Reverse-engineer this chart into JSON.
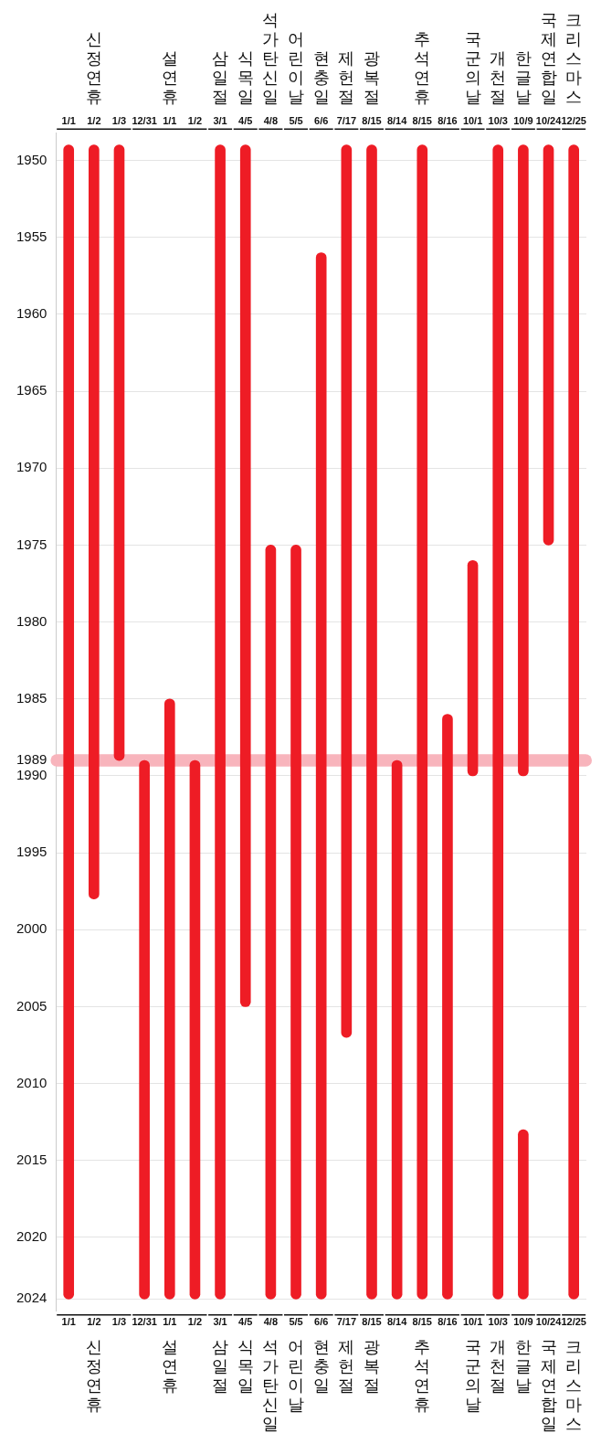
{
  "chart_data": {
    "type": "bar",
    "categories": [
      null,
      "신정연휴",
      null,
      null,
      "설연휴",
      null,
      "삼일절",
      "식목일",
      "석가탄신일",
      "어린이날",
      "현충일",
      "제헌절",
      "광복절",
      null,
      "추석연휴",
      null,
      "국군의날",
      "개천절",
      "한글날",
      "국제연합일",
      "크리스마스"
    ],
    "series": [
      {
        "color": "#ee1c25",
        "base": [
          1949,
          1949,
          1949,
          1989,
          1985,
          1989,
          1949,
          1949,
          1975,
          1975,
          1956,
          1949,
          1949,
          1989,
          1949,
          1986,
          1976,
          1949,
          1949,
          1949,
          1949
        ],
        "values": [
          75,
          49,
          40,
          35,
          39,
          35,
          75,
          56,
          49,
          49,
          68,
          58,
          75,
          35,
          75,
          38,
          14,
          75,
          41,
          26,
          75
        ]
      },
      {
        "color": "#ee1c25",
        "base": [
          null,
          null,
          null,
          null,
          null,
          null,
          null,
          null,
          null,
          null,
          null,
          null,
          null,
          null,
          null,
          null,
          null,
          null,
          2013,
          null,
          null
        ],
        "values": [
          null,
          null,
          null,
          null,
          null,
          null,
          null,
          null,
          null,
          null,
          null,
          null,
          null,
          null,
          null,
          null,
          null,
          null,
          11,
          null,
          null
        ]
      }
    ],
    "ylim": [
      2024.8,
      1948.2
    ],
    "yticks": [
      1950,
      1955,
      1960,
      1965,
      1970,
      1975,
      1980,
      1985,
      1989,
      1990,
      1995,
      2000,
      2005,
      2010,
      2015,
      2020,
      2024
    ],
    "grid": "y",
    "bands": [
      {
        "axis": "y",
        "from": 1988.6,
        "to": 1989.4,
        "color": "#f8b4bc"
      }
    ],
    "annotations": [
      "1/1",
      "1/2",
      "1/3",
      "12/31",
      "1/1",
      "1/2",
      "3/1",
      "4/5",
      "4/8",
      "5/5",
      "6/6",
      "7/17",
      "8/15",
      "8/14",
      "8/15",
      "8/16",
      "10/1",
      "10/3",
      "10/9",
      "10/24",
      "12/25"
    ]
  }
}
